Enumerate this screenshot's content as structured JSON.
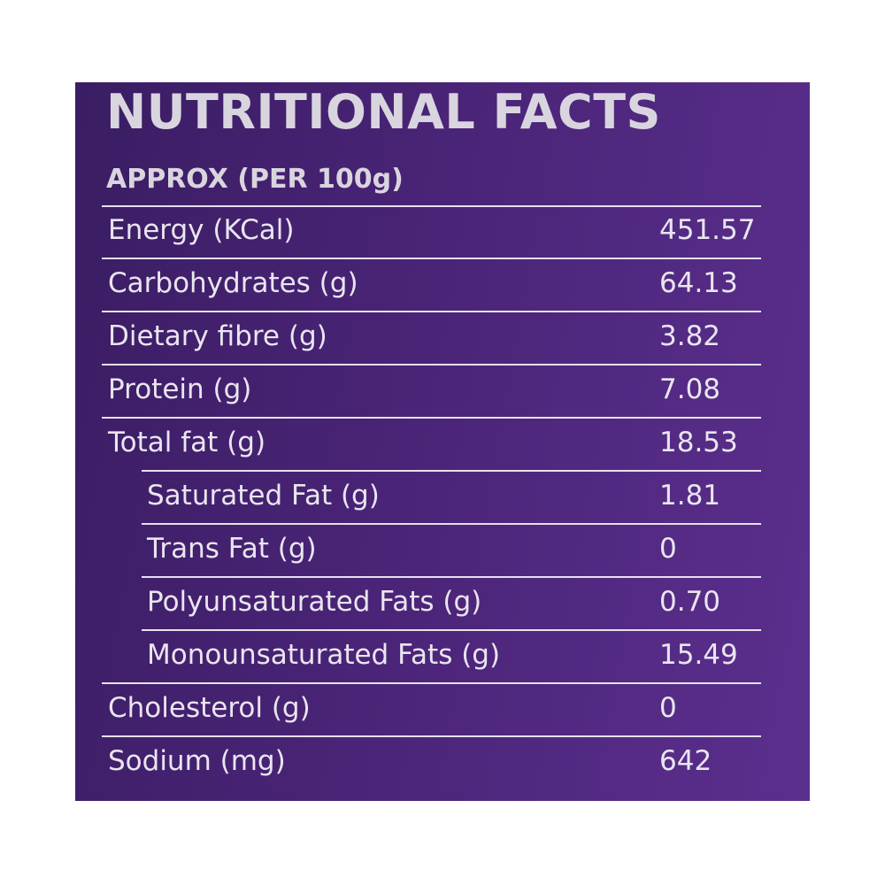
{
  "header": {
    "title": "NUTRITIONAL FACTS",
    "subtitle": "APPROX (PER 100g)"
  },
  "table": {
    "rows": [
      {
        "label": "Energy (KCal)",
        "value": "451.57"
      },
      {
        "label": "Carbohydrates (g)",
        "value": "64.13"
      },
      {
        "label": "Dietary fibre (g)",
        "value": "3.82"
      },
      {
        "label": "Protein (g)",
        "value": "7.08"
      },
      {
        "label": "Total fat (g)",
        "value": "18.53",
        "subrows": [
          {
            "label": "Saturated Fat (g)",
            "value": "1.81"
          },
          {
            "label": "Trans Fat (g)",
            "value": "0"
          },
          {
            "label": "Polyunsaturated Fats (g)",
            "value": "0.70"
          },
          {
            "label": "Monounsaturated Fats (g)",
            "value": "15.49"
          }
        ]
      },
      {
        "label": "Cholesterol (g)",
        "value": "0"
      },
      {
        "label": "Sodium (mg)",
        "value": "642"
      }
    ]
  }
}
